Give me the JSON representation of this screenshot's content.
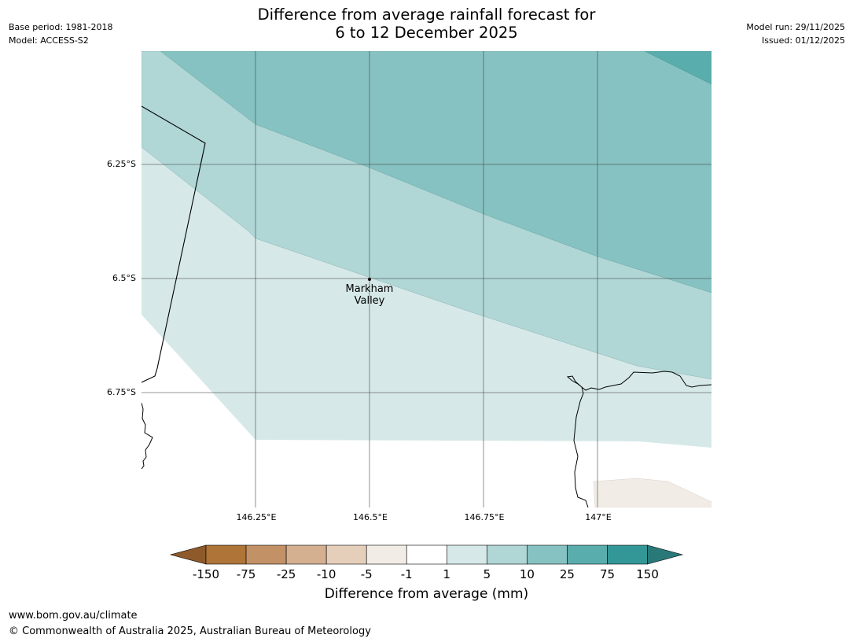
{
  "header": {
    "base_period": "Base period: 1981-2018",
    "model": "Model: ACCESS-S2",
    "model_run": "Model run: 29/11/2025",
    "issued": "Issued: 01/12/2025"
  },
  "title": {
    "line1": "Difference from average rainfall forecast for",
    "line2": "6 to 12 December 2025"
  },
  "map": {
    "lat_labels": [
      "6.25°S",
      "6.5°S",
      "6.75°S"
    ],
    "lon_labels": [
      "146.25°E",
      "146.5°E",
      "146.75°E",
      "147°E"
    ],
    "place": {
      "line1": "Markham",
      "line2": "Valley"
    }
  },
  "colorbar": {
    "ticks": [
      "-150",
      "-75",
      "-25",
      "-10",
      "-5",
      "-1",
      "1",
      "5",
      "10",
      "25",
      "75",
      "150"
    ],
    "colors": [
      "#8e5a2a",
      "#ae7438",
      "#c29165",
      "#d4b090",
      "#e5cfbb",
      "#f2ece6",
      "#ffffff",
      "#d6e9e8",
      "#b0d6d6",
      "#86c2c1",
      "#5aadad",
      "#339797",
      "#2a7979"
    ],
    "label": "Difference from average (mm)"
  },
  "footer": {
    "url": "www.bom.gov.au/climate",
    "copyright": "© Commonwealth of Australia 2025, Australian Bureau of Meteorology"
  }
}
